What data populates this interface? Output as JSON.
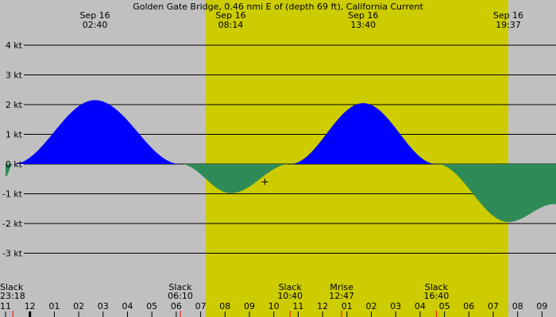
{
  "chart_data": {
    "type": "area",
    "title": "Golden Gate Bridge, 0.46 nmi E of (depth 69 ft), California Current",
    "xlabel": "",
    "ylabel": "",
    "x_unit": "hours (local time, Sep 15 23:00 to Sep 17 09:00)",
    "ylim": [
      -4.7,
      4.7
    ],
    "y_ticks": [
      {
        "value": 4,
        "label": "4 kt"
      },
      {
        "value": 3,
        "label": "3 kt"
      },
      {
        "value": 2,
        "label": "2 kt"
      },
      {
        "value": 1,
        "label": "1 kt"
      },
      {
        "value": 0,
        "label": "0 kt"
      },
      {
        "value": -1,
        "label": "-1 kt"
      },
      {
        "value": -2,
        "label": "-2 kt"
      },
      {
        "value": -3,
        "label": "-3 kt"
      }
    ],
    "daylight": {
      "start": "07:12",
      "end": "19:37"
    },
    "extremes": [
      {
        "date": "Sep 16",
        "time": "02:40",
        "value": 2.15
      },
      {
        "date": "Sep 16",
        "time": "08:14",
        "value": -0.98
      },
      {
        "date": "Sep 16",
        "time": "13:40",
        "value": 2.05
      },
      {
        "date": "Sep 16",
        "time": "19:37",
        "value": -1.95
      }
    ],
    "series": [
      {
        "values": [
          {
            "time": "23:00",
            "value": -0.43
          },
          {
            "time": "23:18",
            "value": 0.0
          },
          {
            "time": "02:40",
            "value": 2.15
          },
          {
            "time": "06:10",
            "value": 0.0
          },
          {
            "time": "08:14",
            "value": -0.98
          },
          {
            "time": "10:40",
            "value": 0.0
          },
          {
            "time": "13:40",
            "value": 2.05
          },
          {
            "time": "16:40",
            "value": 0.0
          },
          {
            "time": "19:37",
            "value": -1.95
          },
          {
            "time": "21:30",
            "value": -1.35
          }
        ]
      }
    ],
    "events": [
      {
        "name": "Slack",
        "time": "23:18"
      },
      {
        "name": "Slack",
        "time": "06:10"
      },
      {
        "name": "Slack",
        "time": "10:40"
      },
      {
        "name": "Mrise",
        "time": "12:47"
      },
      {
        "name": "Slack",
        "time": "16:40"
      }
    ],
    "x_ticks": [
      "11",
      "12",
      "01",
      "02",
      "03",
      "04",
      "05",
      "06",
      "07",
      "08",
      "09",
      "10",
      "11",
      "12",
      "01",
      "02",
      "03",
      "04",
      "05",
      "06",
      "07",
      "08",
      "09"
    ],
    "colors": {
      "night": "#c0c0c0",
      "day": "#cccc00",
      "flood": "#0000ff",
      "ebb": "#2e8b57",
      "event_tick": "#ff0000",
      "midnight_tick": "#000000"
    },
    "marker": {
      "time": "09:38",
      "value": -0.6
    }
  }
}
